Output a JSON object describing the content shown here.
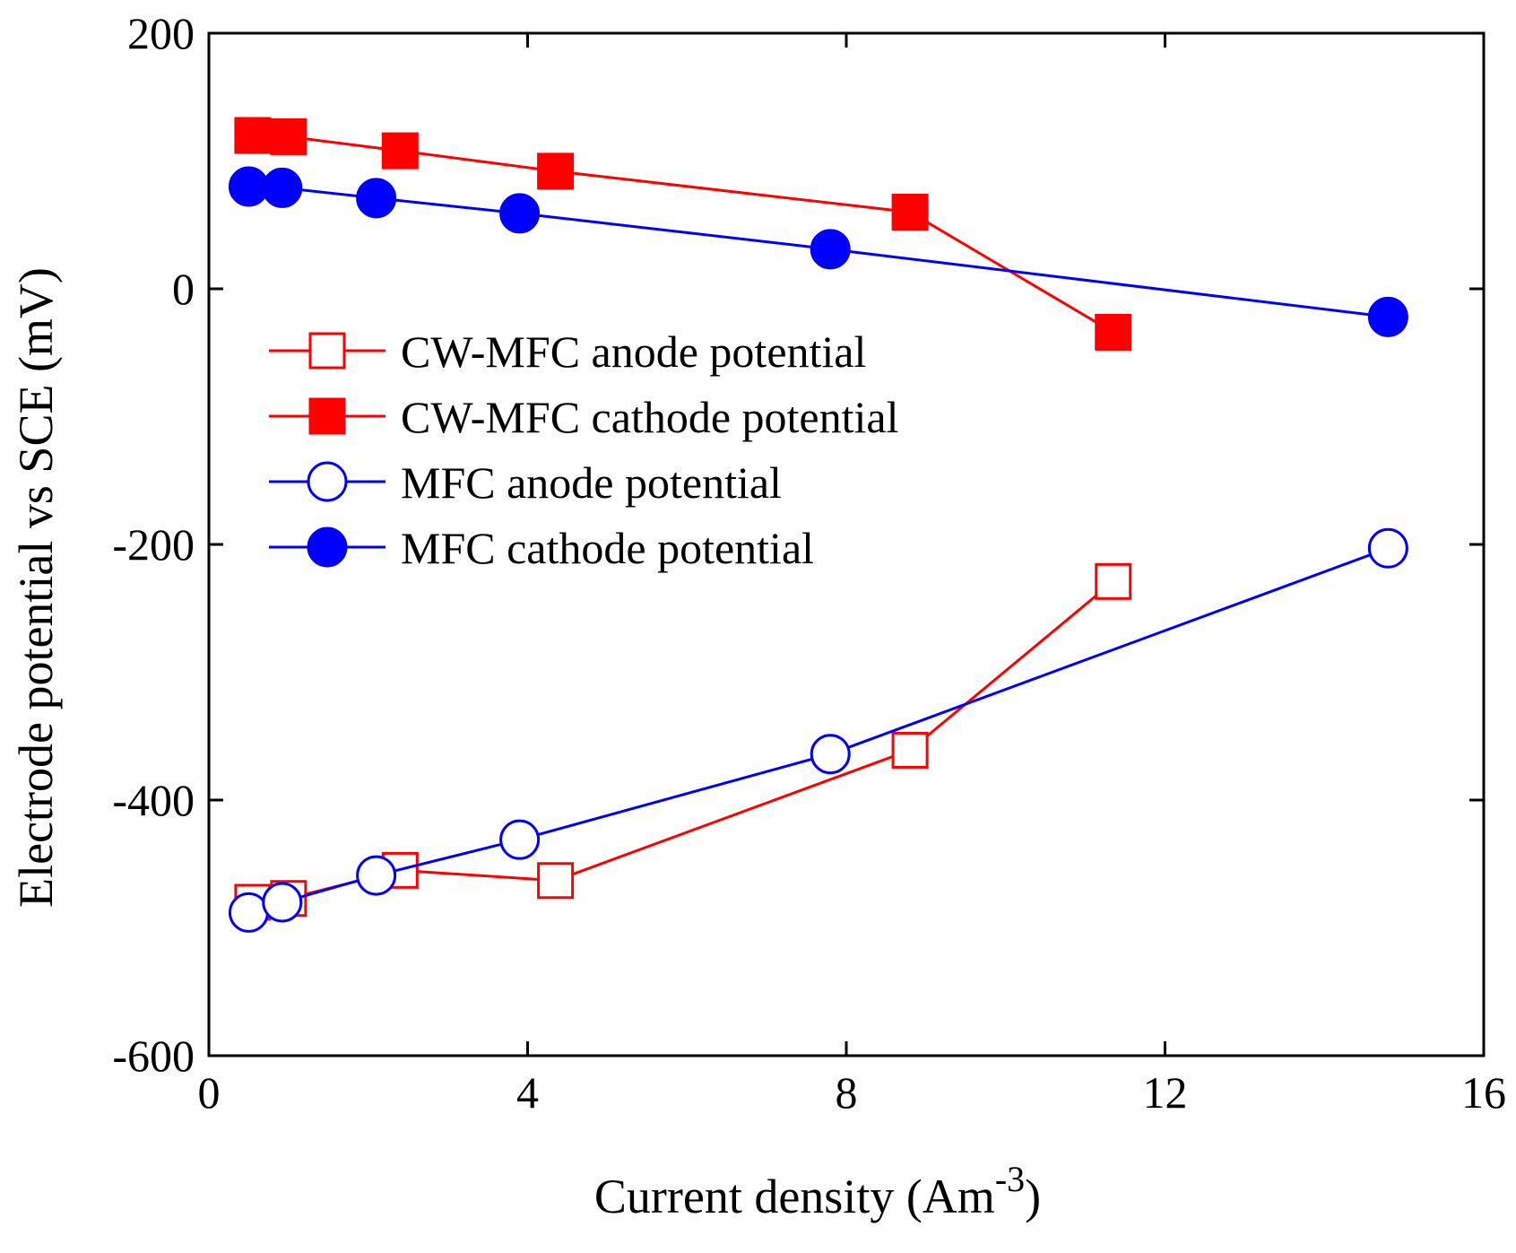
{
  "chart_data": {
    "type": "line",
    "title": "",
    "xlabel": "Current density (Am",
    "xlabel_unit_exponent": "-3",
    "xlabel_close": ")",
    "ylabel": "Electrode potential vs SCE (mV)",
    "xlim": [
      0,
      16
    ],
    "ylim": [
      -600,
      200
    ],
    "xticks": [
      0,
      4,
      8,
      12,
      16
    ],
    "yticks": [
      -600,
      -400,
      -200,
      0,
      200
    ],
    "xtick_labels": [
      "0",
      "4",
      "8",
      "12",
      "16"
    ],
    "ytick_labels": [
      "-600",
      "-400",
      "-200",
      "0",
      "200"
    ],
    "grid": false,
    "legend_position": "center-left",
    "series": [
      {
        "name": "CW-MFC anode potential",
        "color": "#ff0000",
        "marker": "square",
        "filled": false,
        "x": [
          0.55,
          1.0,
          2.4,
          4.35,
          8.8,
          11.35
        ],
        "y": [
          -480,
          -477,
          -455,
          -463,
          -361,
          -229
        ]
      },
      {
        "name": "CW-MFC cathode potential",
        "color": "#ff0000",
        "marker": "square",
        "filled": true,
        "x": [
          0.55,
          1.0,
          2.4,
          4.35,
          8.8,
          11.35
        ],
        "y": [
          120,
          119,
          108,
          92,
          60,
          -34
        ]
      },
      {
        "name": "MFC  anode potential",
        "color": "#0000ff",
        "marker": "circle",
        "filled": false,
        "x": [
          0.5,
          0.92,
          2.1,
          3.9,
          7.8,
          14.8
        ],
        "y": [
          -488,
          -480,
          -459,
          -431,
          -364,
          -203
        ]
      },
      {
        "name": "MFC  cathode potential",
        "color": "#0000ff",
        "marker": "circle",
        "filled": true,
        "x": [
          0.5,
          0.92,
          2.1,
          3.9,
          7.8,
          14.8
        ],
        "y": [
          80,
          79,
          71,
          59,
          31,
          -22
        ]
      }
    ]
  }
}
